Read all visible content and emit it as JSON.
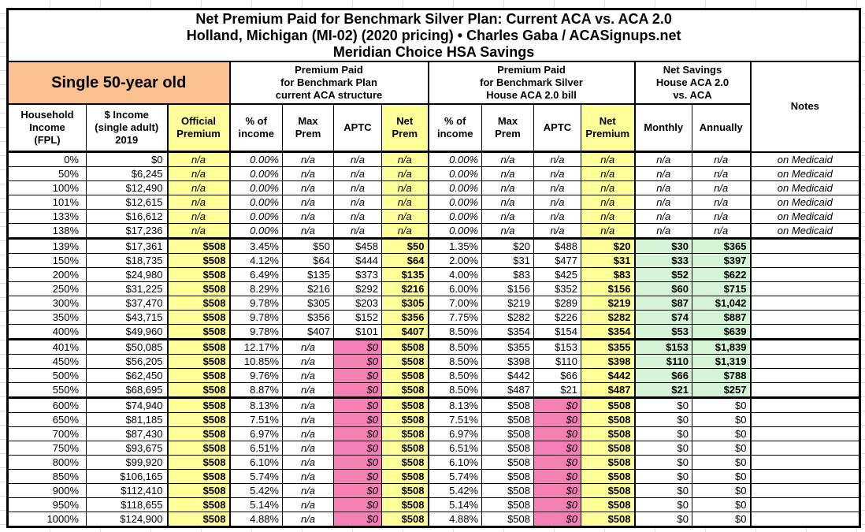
{
  "header": {
    "title_lines": [
      "Net Premium Paid for Benchmark Silver Plan: Current ACA vs. ACA 2.0",
      "Holland, Michigan (MI-02) (2020 pricing) • Charles Gaba / ACASignups.net",
      "Meridian Choice HSA Savings"
    ]
  },
  "groups": {
    "persona": "Single 50-year old",
    "aca": "Premium Paid\nfor Benchmark Plan\ncurrent ACA structure",
    "house": "Premium Paid\nfor Benchmark Silver\nHouse ACA 2.0 bill",
    "savings": "Net Savings\nHouse ACA 2.0\nvs. ACA",
    "notes": "Notes"
  },
  "columns": {
    "fpl": "Household\nIncome\n(FPL)",
    "income": "$ Income\n(single adult)\n2019",
    "official": "Official\nPremium",
    "apct": "% of\nincome",
    "amax": "Max\nPrem",
    "aaptc": "APTC",
    "anet": "Net\nPrem",
    "hpct": "% of\nincome",
    "hmax": "Max\nPrem",
    "haptc": "APTC",
    "hnet": "Net\nPremium",
    "monthly": "Monthly",
    "annually": "Annually"
  },
  "colors": {
    "yellow": "#FFFF99",
    "pink": "#F47FB5",
    "green": "#D5F3D5",
    "orange": "#FAC090",
    "border": "#000000"
  },
  "rows": [
    {
      "band": "medicaid",
      "fpl": "0%",
      "income": "$0",
      "official": "n/a",
      "apct": "0.00%",
      "amax": "n/a",
      "aaptc": "n/a",
      "anet": "n/a",
      "hpct": "0.00%",
      "hmax": "n/a",
      "haptc": "n/a",
      "hnet": "n/a",
      "monthly": "n/a",
      "annually": "n/a",
      "note": "on Medicaid"
    },
    {
      "band": "medicaid",
      "fpl": "50%",
      "income": "$6,245",
      "official": "n/a",
      "apct": "0.00%",
      "amax": "n/a",
      "aaptc": "n/a",
      "anet": "n/a",
      "hpct": "0.00%",
      "hmax": "n/a",
      "haptc": "n/a",
      "hnet": "n/a",
      "monthly": "n/a",
      "annually": "n/a",
      "note": "on Medicaid"
    },
    {
      "band": "medicaid",
      "fpl": "100%",
      "income": "$12,490",
      "official": "n/a",
      "apct": "0.00%",
      "amax": "n/a",
      "aaptc": "n/a",
      "anet": "n/a",
      "hpct": "0.00%",
      "hmax": "n/a",
      "haptc": "n/a",
      "hnet": "n/a",
      "monthly": "n/a",
      "annually": "n/a",
      "note": "on Medicaid"
    },
    {
      "band": "medicaid",
      "fpl": "101%",
      "income": "$12,615",
      "official": "n/a",
      "apct": "0.00%",
      "amax": "n/a",
      "aaptc": "n/a",
      "anet": "n/a",
      "hpct": "0.00%",
      "hmax": "n/a",
      "haptc": "n/a",
      "hnet": "n/a",
      "monthly": "n/a",
      "annually": "n/a",
      "note": "on Medicaid"
    },
    {
      "band": "medicaid",
      "fpl": "133%",
      "income": "$16,612",
      "official": "n/a",
      "apct": "0.00%",
      "amax": "n/a",
      "aaptc": "n/a",
      "anet": "n/a",
      "hpct": "0.00%",
      "hmax": "n/a",
      "haptc": "n/a",
      "hnet": "n/a",
      "monthly": "n/a",
      "annually": "n/a",
      "note": "on Medicaid"
    },
    {
      "band": "medicaid",
      "fpl": "138%",
      "income": "$17,236",
      "official": "n/a",
      "apct": "0.00%",
      "amax": "n/a",
      "aaptc": "n/a",
      "anet": "n/a",
      "hpct": "0.00%",
      "hmax": "n/a",
      "haptc": "n/a",
      "hnet": "n/a",
      "monthly": "n/a",
      "annually": "n/a",
      "note": "on Medicaid"
    },
    {
      "band": "aca",
      "sep": true,
      "fpl": "139%",
      "income": "$17,361",
      "official": "$508",
      "apct": "3.45%",
      "amax": "$50",
      "aaptc": "$458",
      "anet": "$50",
      "hpct": "1.35%",
      "hmax": "$20",
      "haptc": "$488",
      "hnet": "$20",
      "monthly": "$30",
      "annually": "$365",
      "note": ""
    },
    {
      "band": "aca",
      "fpl": "150%",
      "income": "$18,735",
      "official": "$508",
      "apct": "4.12%",
      "amax": "$64",
      "aaptc": "$444",
      "anet": "$64",
      "hpct": "2.00%",
      "hmax": "$31",
      "haptc": "$477",
      "hnet": "$31",
      "monthly": "$33",
      "annually": "$397",
      "note": ""
    },
    {
      "band": "aca",
      "fpl": "200%",
      "income": "$24,980",
      "official": "$508",
      "apct": "6.49%",
      "amax": "$135",
      "aaptc": "$373",
      "anet": "$135",
      "hpct": "4.00%",
      "hmax": "$83",
      "haptc": "$425",
      "hnet": "$83",
      "monthly": "$52",
      "annually": "$622",
      "note": ""
    },
    {
      "band": "aca",
      "fpl": "250%",
      "income": "$31,225",
      "official": "$508",
      "apct": "8.29%",
      "amax": "$216",
      "aaptc": "$292",
      "anet": "$216",
      "hpct": "6.00%",
      "hmax": "$156",
      "haptc": "$352",
      "hnet": "$156",
      "monthly": "$60",
      "annually": "$715",
      "note": ""
    },
    {
      "band": "aca",
      "fpl": "300%",
      "income": "$37,470",
      "official": "$508",
      "apct": "9.78%",
      "amax": "$305",
      "aaptc": "$203",
      "anet": "$305",
      "hpct": "7.00%",
      "hmax": "$219",
      "haptc": "$289",
      "hnet": "$219",
      "monthly": "$87",
      "annually": "$1,042",
      "note": ""
    },
    {
      "band": "aca",
      "fpl": "350%",
      "income": "$43,715",
      "official": "$508",
      "apct": "9.78%",
      "amax": "$356",
      "aaptc": "$152",
      "anet": "$356",
      "hpct": "7.75%",
      "hmax": "$282",
      "haptc": "$226",
      "hnet": "$282",
      "monthly": "$74",
      "annually": "$887",
      "note": ""
    },
    {
      "band": "aca",
      "fpl": "400%",
      "income": "$49,960",
      "official": "$508",
      "apct": "9.78%",
      "amax": "$407",
      "aaptc": "$101",
      "anet": "$407",
      "hpct": "8.50%",
      "hmax": "$354",
      "haptc": "$154",
      "hnet": "$354",
      "monthly": "$53",
      "annually": "$639",
      "note": ""
    },
    {
      "band": "house",
      "sep": true,
      "fpl": "401%",
      "income": "$50,085",
      "official": "$508",
      "apct": "12.17%",
      "amax": "n/a",
      "aaptc": "$0",
      "anet": "$508",
      "hpct": "8.50%",
      "hmax": "$355",
      "haptc": "$153",
      "hnet": "$355",
      "monthly": "$153",
      "annually": "$1,839",
      "note": ""
    },
    {
      "band": "house",
      "fpl": "450%",
      "income": "$56,205",
      "official": "$508",
      "apct": "10.85%",
      "amax": "n/a",
      "aaptc": "$0",
      "anet": "$508",
      "hpct": "8.50%",
      "hmax": "$398",
      "haptc": "$110",
      "hnet": "$398",
      "monthly": "$110",
      "annually": "$1,319",
      "note": ""
    },
    {
      "band": "house",
      "fpl": "500%",
      "income": "$62,450",
      "official": "$508",
      "apct": "9.76%",
      "amax": "n/a",
      "aaptc": "$0",
      "anet": "$508",
      "hpct": "8.50%",
      "hmax": "$442",
      "haptc": "$66",
      "hnet": "$442",
      "monthly": "$66",
      "annually": "$788",
      "note": ""
    },
    {
      "band": "house",
      "fpl": "550%",
      "income": "$68,695",
      "official": "$508",
      "apct": "8.87%",
      "amax": "n/a",
      "aaptc": "$0",
      "anet": "$508",
      "hpct": "8.50%",
      "hmax": "$487",
      "haptc": "$21",
      "hnet": "$487",
      "monthly": "$21",
      "annually": "$257",
      "note": ""
    },
    {
      "band": "none",
      "sep": true,
      "fpl": "600%",
      "income": "$74,940",
      "official": "$508",
      "apct": "8.13%",
      "amax": "n/a",
      "aaptc": "$0",
      "anet": "$508",
      "hpct": "8.13%",
      "hmax": "$508",
      "haptc": "$0",
      "hnet": "$508",
      "monthly": "$0",
      "annually": "$0",
      "note": ""
    },
    {
      "band": "none",
      "fpl": "650%",
      "income": "$81,185",
      "official": "$508",
      "apct": "7.51%",
      "amax": "n/a",
      "aaptc": "$0",
      "anet": "$508",
      "hpct": "7.51%",
      "hmax": "$508",
      "haptc": "$0",
      "hnet": "$508",
      "monthly": "$0",
      "annually": "$0",
      "note": ""
    },
    {
      "band": "none",
      "fpl": "700%",
      "income": "$87,430",
      "official": "$508",
      "apct": "6.97%",
      "amax": "n/a",
      "aaptc": "$0",
      "anet": "$508",
      "hpct": "6.97%",
      "hmax": "$508",
      "haptc": "$0",
      "hnet": "$508",
      "monthly": "$0",
      "annually": "$0",
      "note": ""
    },
    {
      "band": "none",
      "fpl": "750%",
      "income": "$93,675",
      "official": "$508",
      "apct": "6.51%",
      "amax": "n/a",
      "aaptc": "$0",
      "anet": "$508",
      "hpct": "6.51%",
      "hmax": "$508",
      "haptc": "$0",
      "hnet": "$508",
      "monthly": "$0",
      "annually": "$0",
      "note": ""
    },
    {
      "band": "none",
      "fpl": "800%",
      "income": "$99,920",
      "official": "$508",
      "apct": "6.10%",
      "amax": "n/a",
      "aaptc": "$0",
      "anet": "$508",
      "hpct": "6.10%",
      "hmax": "$508",
      "haptc": "$0",
      "hnet": "$508",
      "monthly": "$0",
      "annually": "$0",
      "note": ""
    },
    {
      "band": "none",
      "fpl": "850%",
      "income": "$106,165",
      "official": "$508",
      "apct": "5.74%",
      "amax": "n/a",
      "aaptc": "$0",
      "anet": "$508",
      "hpct": "5.74%",
      "hmax": "$508",
      "haptc": "$0",
      "hnet": "$508",
      "monthly": "$0",
      "annually": "$0",
      "note": ""
    },
    {
      "band": "none",
      "fpl": "900%",
      "income": "$112,410",
      "official": "$508",
      "apct": "5.42%",
      "amax": "n/a",
      "aaptc": "$0",
      "anet": "$508",
      "hpct": "5.42%",
      "hmax": "$508",
      "haptc": "$0",
      "hnet": "$508",
      "monthly": "$0",
      "annually": "$0",
      "note": ""
    },
    {
      "band": "none",
      "fpl": "950%",
      "income": "$118,655",
      "official": "$508",
      "apct": "5.14%",
      "amax": "n/a",
      "aaptc": "$0",
      "anet": "$508",
      "hpct": "5.14%",
      "hmax": "$508",
      "haptc": "$0",
      "hnet": "$508",
      "monthly": "$0",
      "annually": "$0",
      "note": ""
    },
    {
      "band": "none",
      "fpl": "1000%",
      "income": "$124,900",
      "official": "$508",
      "apct": "4.88%",
      "amax": "n/a",
      "aaptc": "$0",
      "anet": "$508",
      "hpct": "4.88%",
      "hmax": "$508",
      "haptc": "$0",
      "hnet": "$508",
      "monthly": "$0",
      "annually": "$0",
      "note": ""
    }
  ]
}
